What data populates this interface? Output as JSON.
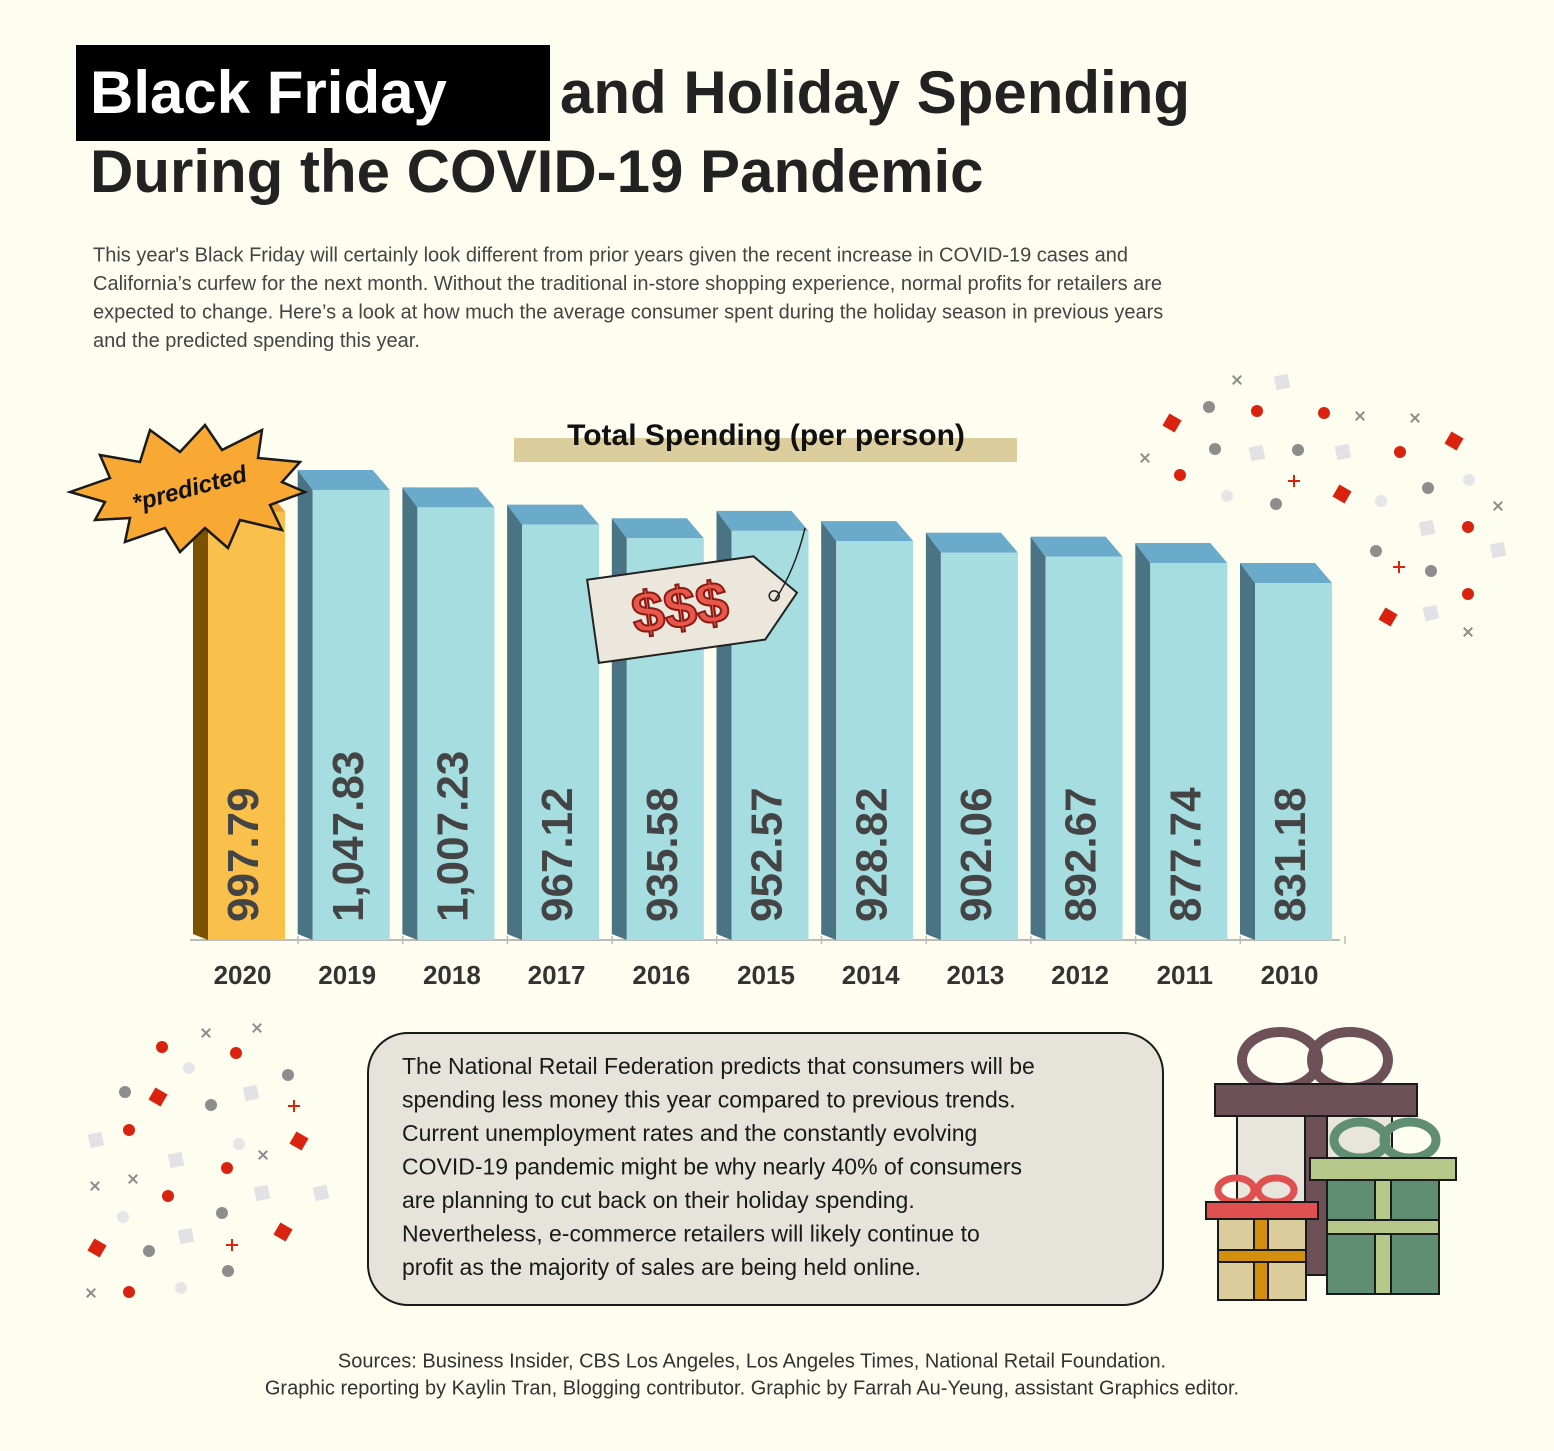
{
  "header": {
    "title_highlight": "Black Friday",
    "title_rest": "and Holiday Spending",
    "title_line2": "During the COVID-19 Pandemic",
    "intro": [
      "This year's Black Friday will certainly look different from prior years given the recent increase in COVID-19 cases and",
      "California’s curfew for the next month. Without the traditional in-store shopping experience, normal profits for retailers are",
      "expected to change. Here’s a look at how much the average consumer spent during the holiday season in previous years",
      "and the predicted spending this year."
    ]
  },
  "chart_data": {
    "type": "bar3d",
    "title": "Total Spending (per person)",
    "categories": [
      "2020",
      "2019",
      "2018",
      "2017",
      "2016",
      "2015",
      "2014",
      "2013",
      "2012",
      "2011",
      "2010"
    ],
    "values": [
      997.79,
      1047.83,
      1007.23,
      967.12,
      935.58,
      952.57,
      928.82,
      902.06,
      892.67,
      877.74,
      831.18
    ],
    "value_labels": [
      "997.79",
      "1,047.83",
      "1,007.23",
      "967.12",
      "935.58",
      "952.57",
      "928.82",
      "902.06",
      "892.67",
      "877.74",
      "831.18"
    ],
    "colors": [
      "#f9c04c",
      "#a6dde0",
      "#a6dde0",
      "#a6dde0",
      "#a6dde0",
      "#a6dde0",
      "#a6dde0",
      "#a6dde0",
      "#a6dde0",
      "#a6dde0",
      "#a6dde0"
    ],
    "annotations": [
      "*predicted",
      "$$$"
    ]
  },
  "note": [
    "The National Retail Federation predicts that consumers will be",
    "spending less money this year compared to previous trends.",
    "Current unemployment rates and the constantly evolving",
    "COVID-19 pandemic might be why nearly 40% of consumers",
    "are planning to cut back on their holiday spending.",
    "Nevertheless, e-commerce retailers will likely continue to",
    "profit as the majority of sales are being held online."
  ],
  "sources": [
    "Sources: Business Insider, CBS Los Angeles, Los Angeles Times, National Retail Foundation.",
    "Graphic reporting by Kaylin Tran, Blogging contributor. Graphic by Farrah Au-Yeung, assistant Graphics editor."
  ]
}
